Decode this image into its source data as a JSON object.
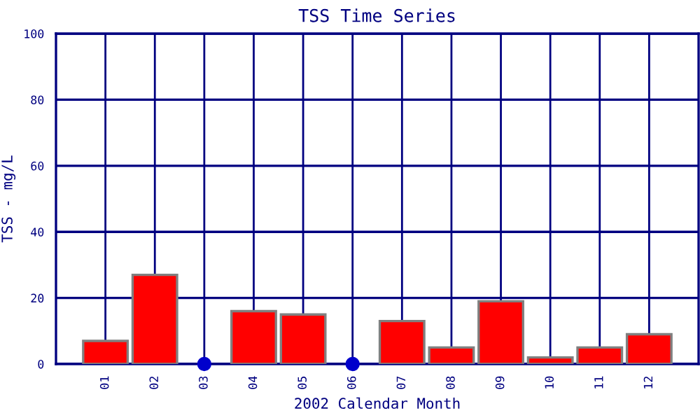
{
  "chart_data": {
    "type": "bar",
    "title": "TSS Time Series",
    "xlabel": "2002 Calendar Month",
    "ylabel": "TSS - mg/L",
    "categories": [
      "01",
      "02",
      "03",
      "04",
      "05",
      "06",
      "07",
      "08",
      "09",
      "10",
      "11",
      "12"
    ],
    "series": [
      {
        "color": "#ff0000",
        "values": [
          7,
          27,
          null,
          16,
          15,
          null,
          13,
          5,
          19,
          2,
          5,
          9
        ]
      },
      {
        "type": "scatter",
        "color": "#0000cc",
        "x": [
          "03",
          "06"
        ],
        "values": [
          0,
          0
        ],
        "marker": "circle"
      }
    ],
    "ylim": [
      0,
      100
    ],
    "yticks": [
      0,
      20,
      40,
      60,
      80,
      100
    ],
    "grid": true,
    "legend": false
  }
}
